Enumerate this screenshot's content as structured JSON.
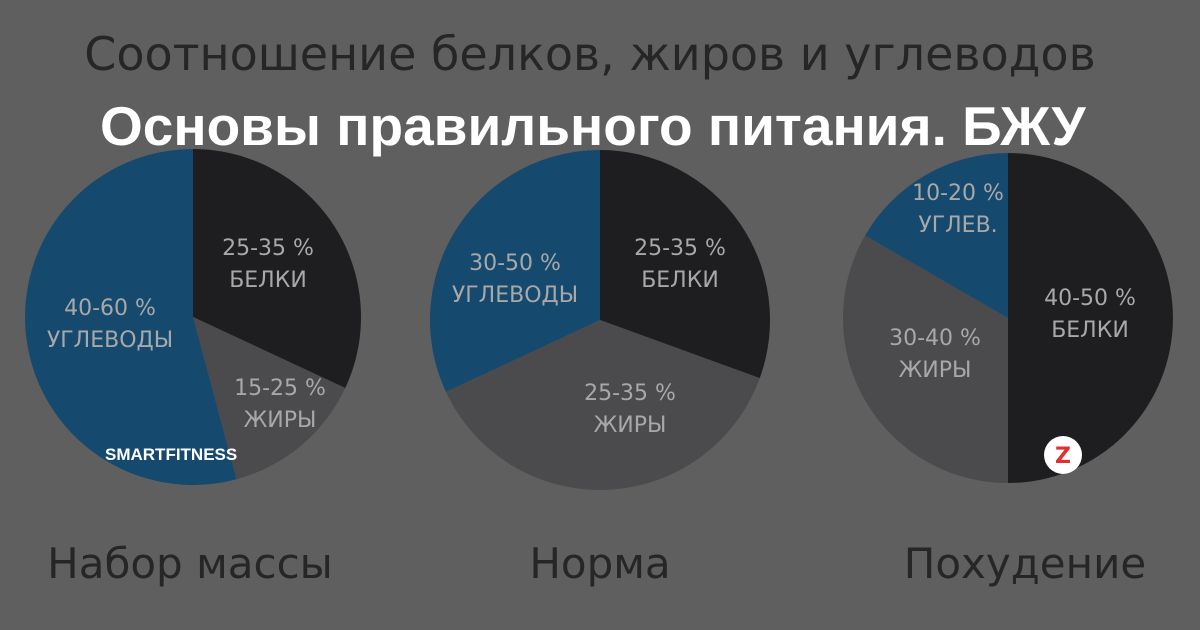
{
  "background": {
    "heading": "Соотношение белков, жиров и углеводов",
    "pies": [
      {
        "caption": "Набор массы",
        "slices": [
          {
            "percent": "25-35 %",
            "label": "БЕЛКИ"
          },
          {
            "percent": "15-25 %",
            "label": "ЖИРЫ"
          },
          {
            "percent": "40-60 %",
            "label": "УГЛЕВОДЫ"
          }
        ]
      },
      {
        "caption": "Норма",
        "slices": [
          {
            "percent": "25-35 %",
            "label": "БЕЛКИ"
          },
          {
            "percent": "25-35 %",
            "label": "ЖИРЫ"
          },
          {
            "percent": "30-50 %",
            "label": "УГЛЕВОДЫ"
          }
        ]
      },
      {
        "caption": "Похудение",
        "slices": [
          {
            "percent": "40-50 %",
            "label": "БЕЛКИ"
          },
          {
            "percent": "30-40 %",
            "label": "ЖИРЫ"
          },
          {
            "percent": "10-20 %",
            "label": "УГЛЕВ."
          }
        ]
      }
    ]
  },
  "title": "Основы правильного питания. БЖУ",
  "source": "SMARTFITNESS"
}
